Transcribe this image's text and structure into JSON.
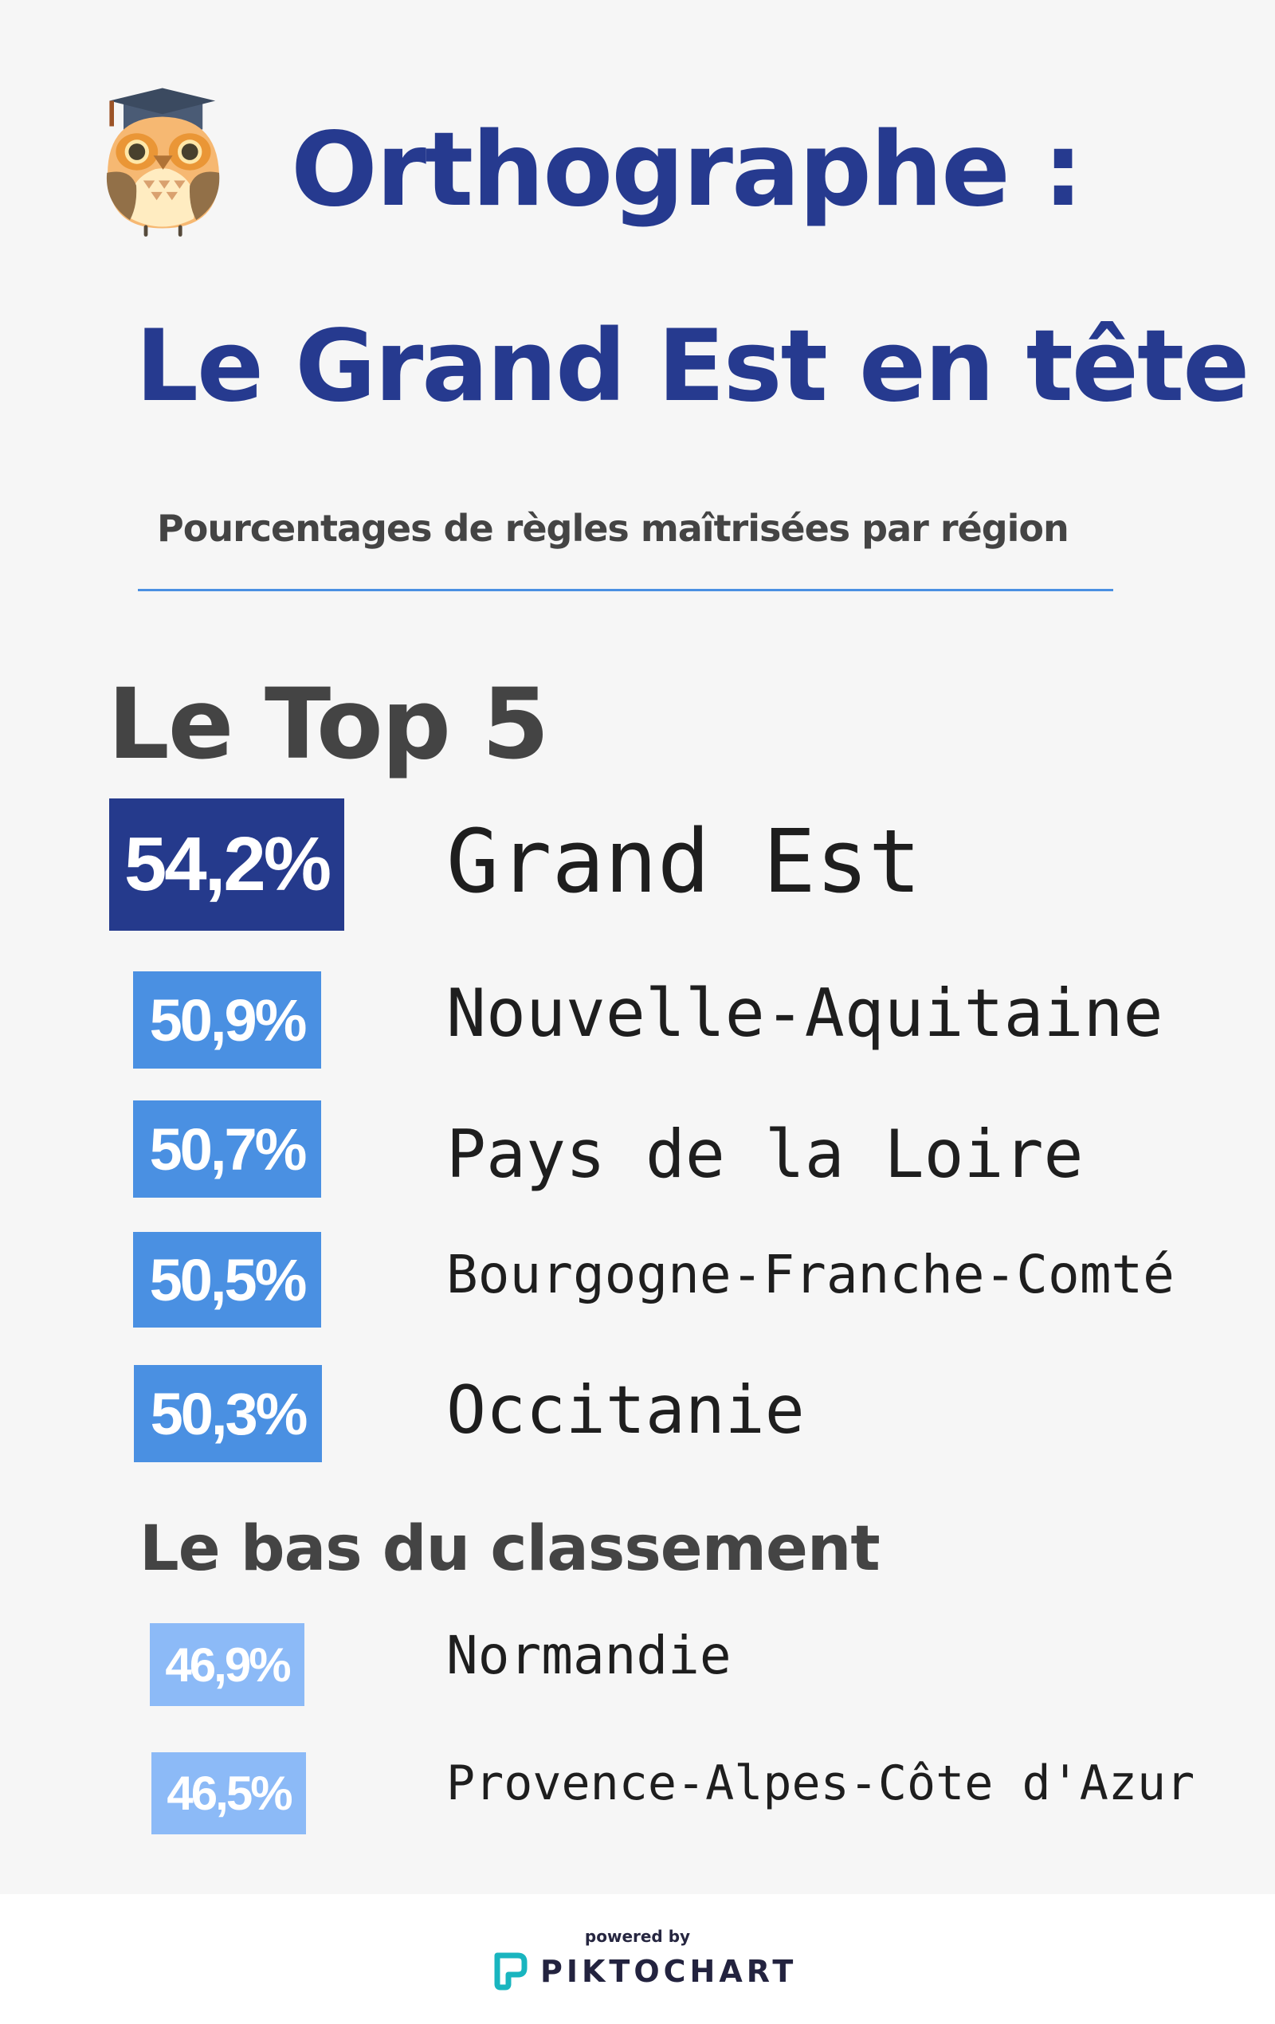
{
  "header": {
    "title_line1": "Orthographe :",
    "title_line2": "Le Grand Est en tête",
    "subtitle": "Pourcentages de règles maîtrisées par région"
  },
  "top": {
    "heading": "Le Top 5",
    "items": [
      {
        "percent": "54,2%",
        "region": "Grand Est",
        "color": "#253a8c"
      },
      {
        "percent": "50,9%",
        "region": "Nouvelle-Aquitaine",
        "color": "#4a90e2"
      },
      {
        "percent": "50,7%",
        "region": "Pays de la Loire",
        "color": "#4a90e2"
      },
      {
        "percent": "50,5%",
        "region": "Bourgogne-Franche-Comté",
        "color": "#4a90e2"
      },
      {
        "percent": "50,3%",
        "region": "Occitanie",
        "color": "#4a90e2"
      }
    ]
  },
  "bottom": {
    "heading": "Le bas du classement",
    "items": [
      {
        "percent": "46,9%",
        "region": "Normandie",
        "color": "#8cbaf7"
      },
      {
        "percent": "46,5%",
        "region": "Provence-Alpes-Côte d'Azur",
        "color": "#8cbaf7"
      }
    ]
  },
  "footer": {
    "powered_by": "powered by",
    "brand": "PIKTOCHART",
    "brand_color": "#19b5bf"
  },
  "icons": {
    "mascot": "owl-graduate-icon",
    "brand_logo": "piktochart-logo-icon"
  }
}
